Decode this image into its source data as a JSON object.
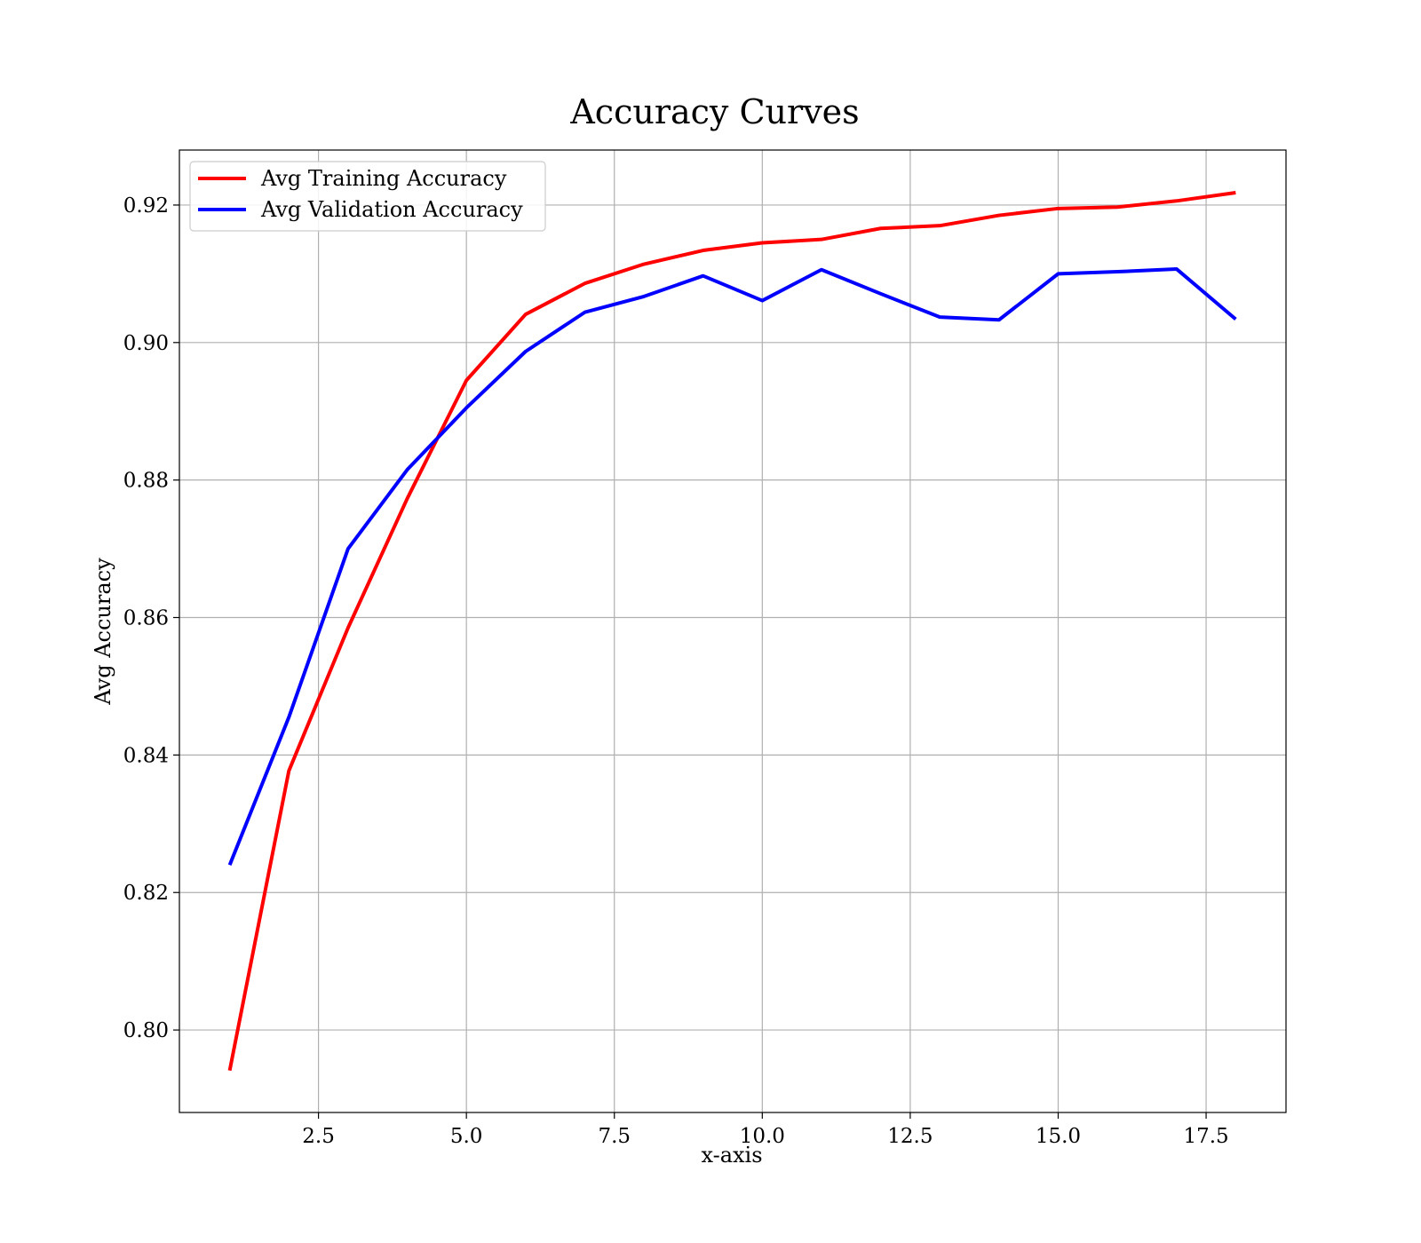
{
  "chart_data": {
    "type": "line",
    "title": "Accuracy Curves",
    "xlabel": "x-axis",
    "ylabel": "Avg Accuracy",
    "xlim": [
      0.15,
      18.85
    ],
    "ylim": [
      0.788,
      0.928
    ],
    "xticks": [
      2.5,
      5.0,
      7.5,
      10.0,
      12.5,
      15.0,
      17.5
    ],
    "xtick_labels": [
      "2.5",
      "5.0",
      "7.5",
      "10.0",
      "12.5",
      "15.0",
      "17.5"
    ],
    "yticks": [
      0.8,
      0.82,
      0.84,
      0.86,
      0.88,
      0.9,
      0.92
    ],
    "ytick_labels": [
      "0.80",
      "0.82",
      "0.84",
      "0.86",
      "0.88",
      "0.90",
      "0.92"
    ],
    "grid": true,
    "legend_position": "upper-left",
    "x": [
      1,
      2,
      3,
      4,
      5,
      6,
      7,
      8,
      9,
      10,
      11,
      12,
      13,
      14,
      15,
      16,
      17,
      18
    ],
    "series": [
      {
        "name": "Avg Training Accuracy",
        "color": "#ff0000",
        "values": [
          0.7941,
          0.8377,
          0.8585,
          0.8773,
          0.8945,
          0.9041,
          0.9086,
          0.9114,
          0.9134,
          0.9145,
          0.915,
          0.9166,
          0.917,
          0.9185,
          0.9195,
          0.9197,
          0.9206,
          0.9218
        ]
      },
      {
        "name": "Avg Validation Accuracy",
        "color": "#0000ff",
        "values": [
          0.824,
          0.8455,
          0.87,
          0.8815,
          0.8905,
          0.8987,
          0.9044,
          0.9067,
          0.9097,
          0.9061,
          0.9106,
          0.9071,
          0.9037,
          0.9033,
          0.91,
          0.9103,
          0.9107,
          0.9034
        ]
      }
    ]
  }
}
